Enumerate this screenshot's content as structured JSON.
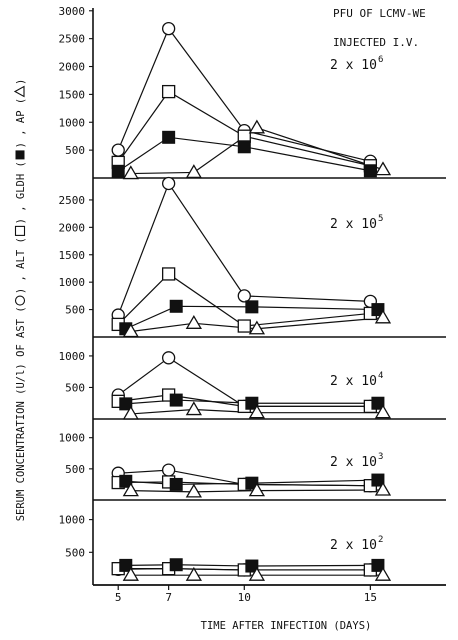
{
  "chart_data": {
    "type": "line",
    "header": [
      "PFU OF LCMV-WE",
      "INJECTED I.V."
    ],
    "ylabel_parts": [
      "SERUM CONCENTRATION (U/l) OF AST (",
      ") , ALT (",
      ") , GLDH (",
      ") , AP (",
      ")"
    ],
    "ylabel_symbols": [
      "circle",
      "square",
      "filled-square",
      "triangle"
    ],
    "xlabel": "TIME AFTER INFECTION (DAYS)",
    "x_ticks": [
      5,
      7,
      10,
      15
    ],
    "xlim": [
      4,
      18
    ],
    "legend_map": {
      "AST": "open circle",
      "ALT": "open square",
      "GLDH": "filled square",
      "AP": "open triangle"
    },
    "panels": [
      {
        "dose_base": "2 x 10",
        "dose_exp": "6",
        "y_ticks": [
          "500",
          "1000",
          "1500",
          "2000",
          "2500",
          "3000"
        ],
        "ylim": [
          0,
          3050
        ],
        "series": [
          {
            "name": "AST",
            "x": [
              5,
              7,
              10,
              15
            ],
            "values": [
              500,
              2680,
              850,
              300
            ]
          },
          {
            "name": "ALT",
            "x": [
              5,
              7,
              10,
              15
            ],
            "values": [
              280,
              1550,
              750,
              220
            ]
          },
          {
            "name": "GLDH",
            "x": [
              5,
              7,
              10,
              15
            ],
            "values": [
              120,
              730,
              560,
              130
            ]
          },
          {
            "name": "AP",
            "x": [
              5.5,
              8,
              10.5,
              15.5
            ],
            "values": [
              80,
              100,
              900,
              150
            ]
          }
        ]
      },
      {
        "dose_base": "2 x 10",
        "dose_exp": "5",
        "y_ticks": [
          "500",
          "1000",
          "1500",
          "2000",
          "2500"
        ],
        "ylim": [
          0,
          2900
        ],
        "series": [
          {
            "name": "AST",
            "x": [
              5,
              7,
              10,
              15
            ],
            "values": [
              400,
              2800,
              750,
              650
            ]
          },
          {
            "name": "ALT",
            "x": [
              5,
              7,
              10,
              15
            ],
            "values": [
              230,
              1150,
              200,
              430
            ]
          },
          {
            "name": "GLDH",
            "x": [
              5.3,
              7.3,
              10.3,
              15.3
            ],
            "values": [
              150,
              560,
              550,
              500
            ]
          },
          {
            "name": "AP",
            "x": [
              5.5,
              8,
              10.5,
              15.5
            ],
            "values": [
              100,
              250,
              150,
              350
            ]
          }
        ]
      },
      {
        "dose_base": "2 x 10",
        "dose_exp": "4",
        "y_ticks": [
          "500",
          "1000"
        ],
        "ylim": [
          0,
          1300
        ],
        "series": [
          {
            "name": "AST",
            "x": [
              5,
              7,
              10,
              15
            ],
            "values": [
              380,
              970,
              200,
              200
            ]
          },
          {
            "name": "ALT",
            "x": [
              5,
              7,
              10,
              15
            ],
            "values": [
              280,
              380,
              200,
              200
            ]
          },
          {
            "name": "GLDH",
            "x": [
              5.3,
              7.3,
              10.3,
              15.3
            ],
            "values": [
              240,
              300,
              250,
              250
            ]
          },
          {
            "name": "AP",
            "x": [
              5.5,
              8,
              10.5,
              15.5
            ],
            "values": [
              80,
              150,
              100,
              100
            ]
          }
        ]
      },
      {
        "dose_base": "2 x 10",
        "dose_exp": "3",
        "y_ticks": [
          "500",
          "1000"
        ],
        "ylim": [
          0,
          1300
        ],
        "series": [
          {
            "name": "AST",
            "x": [
              5,
              7,
              10,
              15
            ],
            "values": [
              430,
              480,
              250,
              230
            ]
          },
          {
            "name": "ALT",
            "x": [
              5,
              7,
              10,
              15
            ],
            "values": [
              280,
              290,
              250,
              230
            ]
          },
          {
            "name": "GLDH",
            "x": [
              5.3,
              7.3,
              10.3,
              15.3
            ],
            "values": [
              300,
              250,
              270,
              320
            ]
          },
          {
            "name": "AP",
            "x": [
              5.5,
              8,
              10.5,
              15.5
            ],
            "values": [
              150,
              130,
              150,
              160
            ]
          }
        ]
      },
      {
        "dose_base": "2 x 10",
        "dose_exp": "2",
        "y_ticks": [
          "500",
          "1000"
        ],
        "ylim": [
          0,
          1300
        ],
        "series": [
          {
            "name": "AST",
            "x": [
              5,
              7,
              10,
              15
            ],
            "values": [
              240,
              250,
              230,
              230
            ]
          },
          {
            "name": "ALT",
            "x": [
              5,
              7,
              10,
              15
            ],
            "values": [
              250,
              250,
              230,
              230
            ]
          },
          {
            "name": "GLDH",
            "x": [
              5.3,
              7.3,
              10.3,
              15.3
            ],
            "values": [
              300,
              310,
              290,
              300
            ]
          },
          {
            "name": "AP",
            "x": [
              5.5,
              8,
              10.5,
              15.5
            ],
            "values": [
              150,
              150,
              150,
              150
            ]
          }
        ]
      }
    ]
  }
}
